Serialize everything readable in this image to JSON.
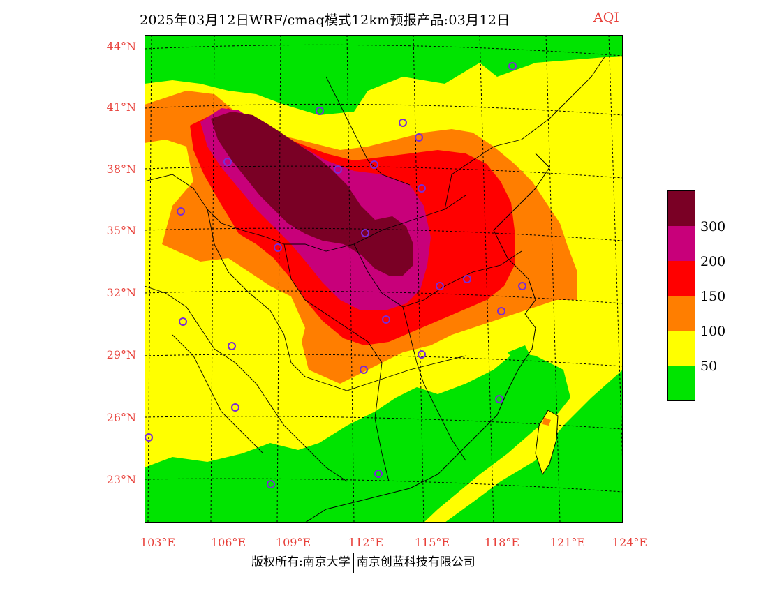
{
  "title": "2025年03月12日WRF/cmaq模式12km预报产品:03月12日",
  "unit": "AQI",
  "lat_labels": [
    "44°N",
    "41°N",
    "38°N",
    "35°N",
    "32°N",
    "29°N",
    "26°N",
    "23°N"
  ],
  "lon_labels": [
    "103°E",
    "106°E",
    "109°E",
    "112°E",
    "115°E",
    "118°E",
    "121°E",
    "124°E"
  ],
  "legend": {
    "thresholds": [
      "300",
      "200",
      "150",
      "100",
      "50"
    ],
    "colors": [
      "#7a0025",
      "#c8007a",
      "#ff0000",
      "#ff7e00",
      "#ffff00",
      "#00e400"
    ]
  },
  "copyright": {
    "left": "版权所有:南京大学",
    "right": "南京创蓝科技有限公司"
  },
  "colors": {
    "label_red": "#e8403a",
    "station_marker": "#7a2bd6"
  }
}
